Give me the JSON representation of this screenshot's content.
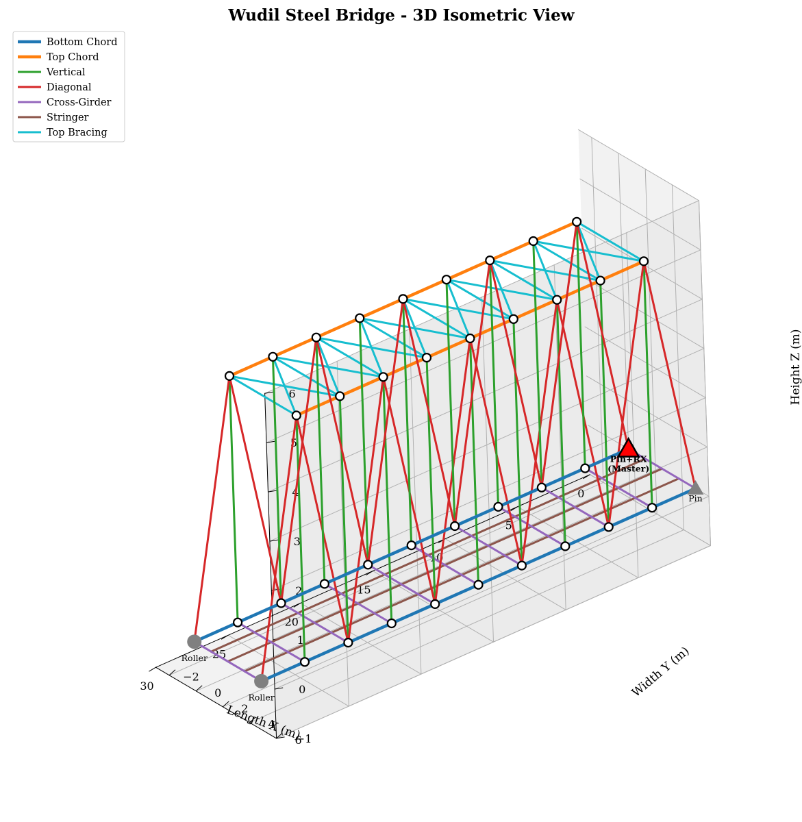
{
  "chart_data": {
    "type": "line",
    "projection": "3d",
    "title": "Wudil Steel Bridge - 3D Isometric View",
    "xlabel": "Length X (m)",
    "ylabel": "Width Y (m)",
    "zlabel": "Height Z (m)",
    "xlim": [
      0,
      30
    ],
    "ylim": [
      -3,
      6
    ],
    "zlim": [
      -1,
      6
    ],
    "x_ticks": [
      0,
      5,
      10,
      15,
      20,
      25,
      30
    ],
    "y_ticks": [
      -2,
      0,
      2,
      4,
      6
    ],
    "z_ticks": [
      -1,
      0,
      1,
      2,
      3,
      4,
      5,
      6
    ],
    "legend_position": "top-left",
    "panel_spacing_m": 3,
    "deck_width_m": 5,
    "truss_height_m": 5,
    "stringer_y": [
      1.25,
      2.5,
      3.75
    ],
    "series": [
      {
        "name": "Bottom Chord",
        "color": "#1f77b4",
        "elements": "bottom chords, y = 0 and y = 5, x = 0 to 30"
      },
      {
        "name": "Top Chord",
        "color": "#ff7f0e",
        "elements": "top chords, y = 0 and y = 5, x = 3 to 27, z = 5"
      },
      {
        "name": "Vertical",
        "color": "#2ca02c",
        "elements": "x = 3, 6, ..., 27 on both sides"
      },
      {
        "name": "Diagonal",
        "color": "#d62728",
        "elements": "alternating diagonals between top and bottom nodes"
      },
      {
        "name": "Cross-Girder",
        "color": "#9467bd",
        "elements": "every 3 m across the deck, x = 0 to 30"
      },
      {
        "name": "Stringer",
        "color": "#8c564b",
        "elements": "3 longitudinal stringers"
      },
      {
        "name": "Top Bracing",
        "color": "#17becf",
        "elements": "top struts and X-bracing every panel"
      }
    ],
    "supports": [
      {
        "label": "Pin+RX\n(Master)",
        "x": 0,
        "y": 0,
        "z": 0,
        "symbol": "triangle",
        "color": "#ff0000"
      },
      {
        "label": "Pin",
        "x": 0,
        "y": 5,
        "z": 0,
        "symbol": "triangle",
        "color": "#808080"
      },
      {
        "label": "Roller",
        "x": 30,
        "y": 0,
        "z": 0,
        "symbol": "circle",
        "color": "#808080"
      },
      {
        "label": "Roller",
        "x": 30,
        "y": 5,
        "z": 0,
        "symbol": "circle",
        "color": "#808080"
      }
    ]
  }
}
